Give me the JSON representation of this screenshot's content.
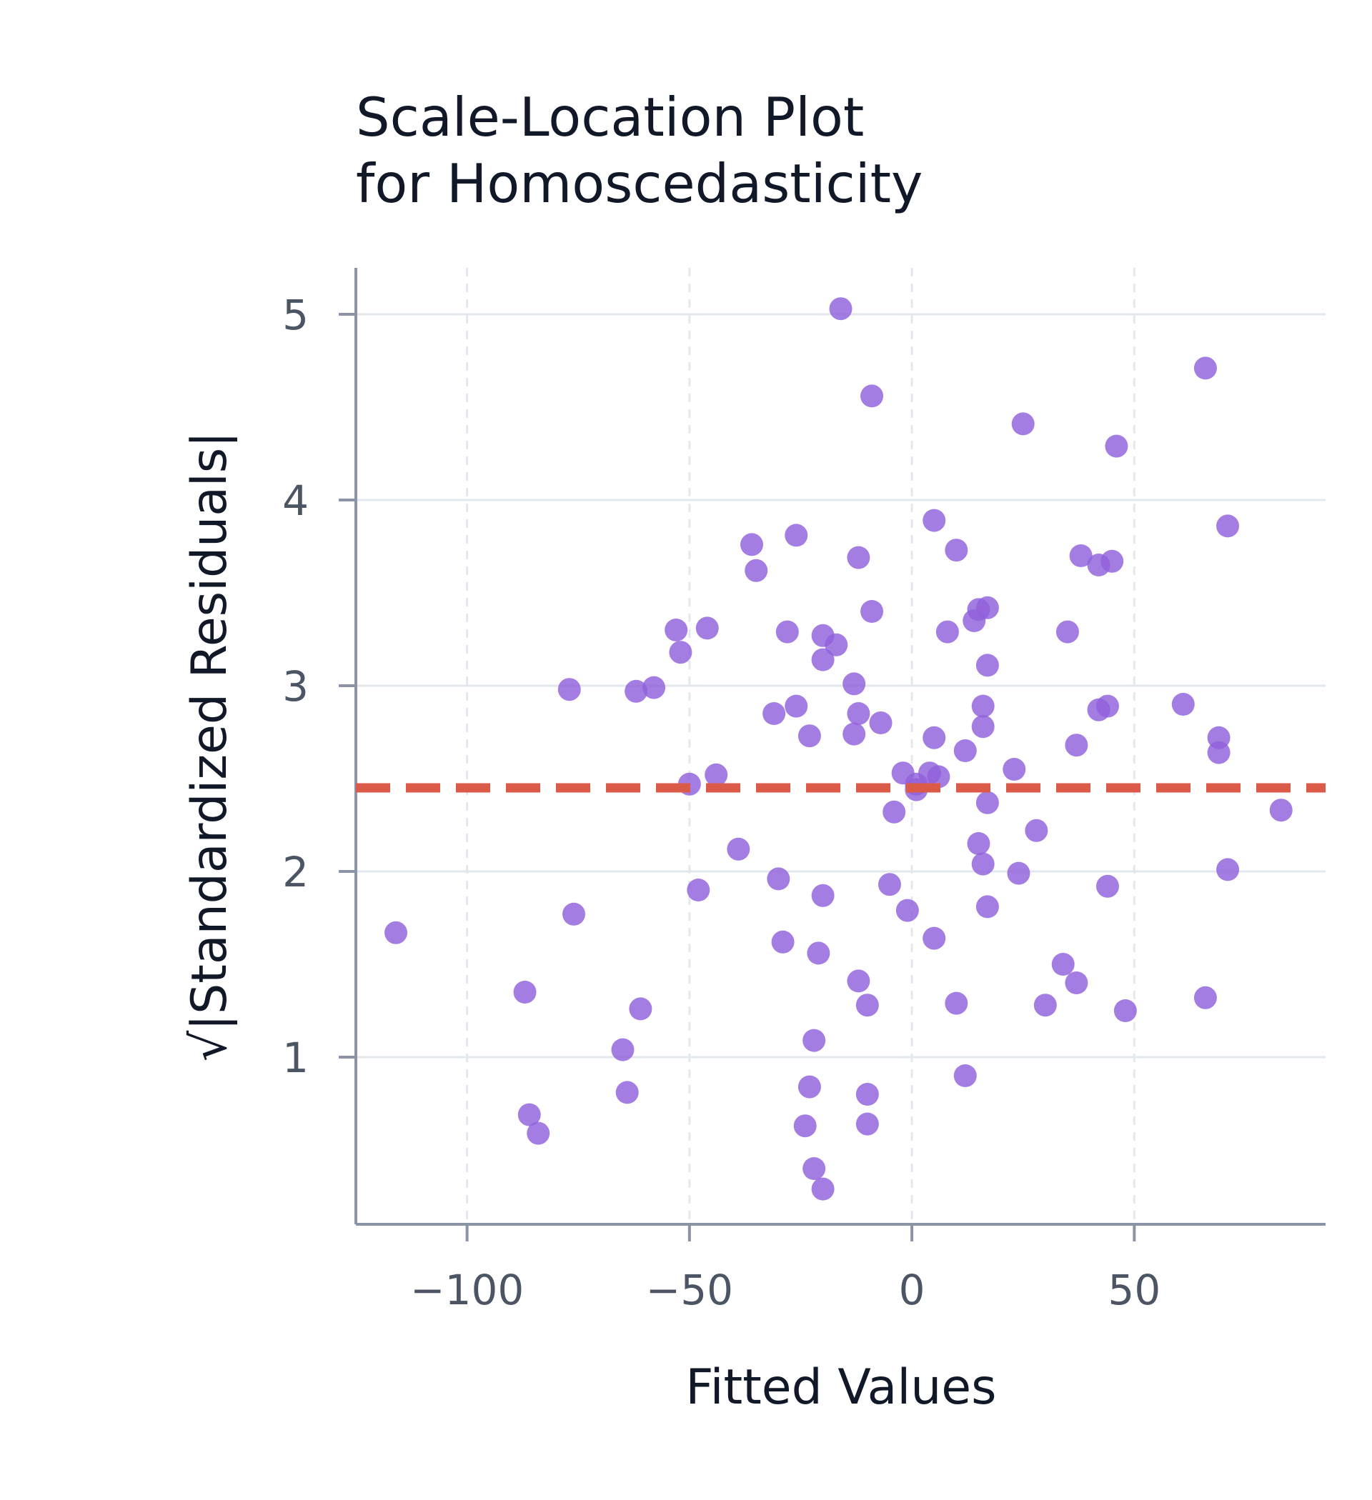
{
  "chart_data": {
    "type": "scatter",
    "title": [
      "Scale-Location Plot",
      "for Homoscedasticity"
    ],
    "xlabel": "Fitted Values",
    "ylabel": "√|Standardized Residuals|",
    "xlim": [
      -125,
      93
    ],
    "ylim": [
      0.1,
      5.25
    ],
    "xticks": [
      -100,
      -50,
      0,
      50
    ],
    "xtick_labels": [
      "−100",
      "−50",
      "0",
      "50"
    ],
    "yticks": [
      1,
      2,
      3,
      4,
      5
    ],
    "ytick_labels": [
      "1",
      "2",
      "3",
      "4",
      "5"
    ],
    "grid": {
      "x": "dashed",
      "y": "solid"
    },
    "reference_line": {
      "y": 2.45,
      "style": "dashed",
      "color": "#dc5a48"
    },
    "point_color": "#9060dc",
    "series": [
      {
        "points": [
          [
            -116,
            1.67
          ],
          [
            -87,
            1.35
          ],
          [
            -86,
            0.69
          ],
          [
            -84,
            0.59
          ],
          [
            -77,
            2.98
          ],
          [
            -76,
            1.77
          ],
          [
            -65,
            1.04
          ],
          [
            -64,
            0.81
          ],
          [
            -62,
            2.97
          ],
          [
            -61,
            1.26
          ],
          [
            -58,
            2.99
          ],
          [
            -53,
            3.3
          ],
          [
            -52,
            3.18
          ],
          [
            -50,
            2.47
          ],
          [
            -48,
            1.9
          ],
          [
            -46,
            3.31
          ],
          [
            -44,
            2.52
          ],
          [
            -39,
            2.12
          ],
          [
            -36,
            3.76
          ],
          [
            -35,
            3.62
          ],
          [
            -31,
            2.85
          ],
          [
            -30,
            1.96
          ],
          [
            -29,
            1.62
          ],
          [
            -28,
            3.29
          ],
          [
            -26,
            2.89
          ],
          [
            -26,
            3.81
          ],
          [
            -24,
            0.63
          ],
          [
            -23,
            2.73
          ],
          [
            -23,
            0.84
          ],
          [
            -22,
            1.09
          ],
          [
            -22,
            0.4
          ],
          [
            -21,
            1.56
          ],
          [
            -20,
            3.14
          ],
          [
            -20,
            3.27
          ],
          [
            -20,
            1.87
          ],
          [
            -20,
            0.29
          ],
          [
            -17,
            3.22
          ],
          [
            -16,
            5.03
          ],
          [
            -13,
            2.74
          ],
          [
            -13,
            3.01
          ],
          [
            -12,
            2.85
          ],
          [
            -12,
            1.41
          ],
          [
            -12,
            3.69
          ],
          [
            -10,
            1.28
          ],
          [
            -10,
            0.8
          ],
          [
            -10,
            0.64
          ],
          [
            -9,
            4.56
          ],
          [
            -9,
            3.4
          ],
          [
            -7,
            2.8
          ],
          [
            -5,
            1.93
          ],
          [
            -4,
            2.32
          ],
          [
            -2,
            2.53
          ],
          [
            -1,
            1.79
          ],
          [
            1,
            2.47
          ],
          [
            1,
            2.44
          ],
          [
            4,
            2.53
          ],
          [
            5,
            3.89
          ],
          [
            5,
            2.72
          ],
          [
            5,
            1.64
          ],
          [
            6,
            2.51
          ],
          [
            8,
            3.29
          ],
          [
            10,
            3.73
          ],
          [
            10,
            1.29
          ],
          [
            12,
            0.9
          ],
          [
            12,
            2.65
          ],
          [
            14,
            3.35
          ],
          [
            15,
            3.41
          ],
          [
            15,
            2.15
          ],
          [
            16,
            2.78
          ],
          [
            16,
            2.04
          ],
          [
            16,
            2.89
          ],
          [
            17,
            3.42
          ],
          [
            17,
            2.37
          ],
          [
            17,
            1.81
          ],
          [
            17,
            3.11
          ],
          [
            23,
            2.55
          ],
          [
            24,
            1.99
          ],
          [
            25,
            4.41
          ],
          [
            28,
            2.22
          ],
          [
            30,
            1.28
          ],
          [
            34,
            1.5
          ],
          [
            35,
            3.29
          ],
          [
            37,
            2.68
          ],
          [
            37,
            1.4
          ],
          [
            38,
            3.7
          ],
          [
            42,
            3.65
          ],
          [
            42,
            2.87
          ],
          [
            44,
            2.89
          ],
          [
            44,
            1.92
          ],
          [
            45,
            3.67
          ],
          [
            46,
            4.29
          ],
          [
            48,
            1.25
          ],
          [
            61,
            2.9
          ],
          [
            66,
            4.71
          ],
          [
            66,
            1.32
          ],
          [
            69,
            2.64
          ],
          [
            69,
            2.72
          ],
          [
            71,
            2.01
          ],
          [
            71,
            3.86
          ],
          [
            83,
            2.33
          ]
        ]
      }
    ]
  }
}
